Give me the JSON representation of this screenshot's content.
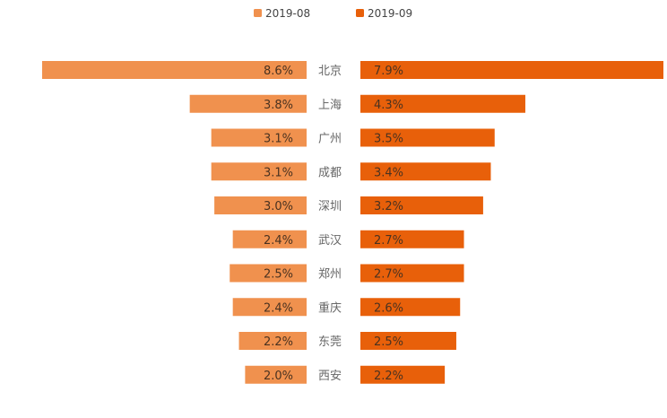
{
  "chart_data": {
    "type": "bar",
    "orientation": "horizontal-butterfly",
    "title": "",
    "categories": [
      "北京",
      "上海",
      "广州",
      "成都",
      "深圳",
      "武汉",
      "郑州",
      "重庆",
      "东莞",
      "西安"
    ],
    "series": [
      {
        "name": "2019-08",
        "color": "#f0914e",
        "values": [
          8.6,
          3.8,
          3.1,
          3.1,
          3.0,
          2.4,
          2.5,
          2.4,
          2.2,
          2.0
        ],
        "labels": [
          "8.6%",
          "3.8%",
          "3.1%",
          "3.1%",
          "3.0%",
          "2.4%",
          "2.5%",
          "2.4%",
          "2.2%",
          "2.0%"
        ]
      },
      {
        "name": "2019-09",
        "color": "#e8600a",
        "values": [
          7.9,
          4.3,
          3.5,
          3.4,
          3.2,
          2.7,
          2.7,
          2.6,
          2.5,
          2.2
        ],
        "labels": [
          "7.9%",
          "4.3%",
          "3.5%",
          "3.4%",
          "3.2%",
          "2.7%",
          "2.7%",
          "2.6%",
          "2.5%",
          "2.2%"
        ]
      }
    ],
    "xlabel": "",
    "ylabel": "",
    "left_xlim": [
      0,
      8.6
    ],
    "right_xlim": [
      0,
      7.9
    ],
    "grid": false,
    "legend_position": "top-center"
  }
}
